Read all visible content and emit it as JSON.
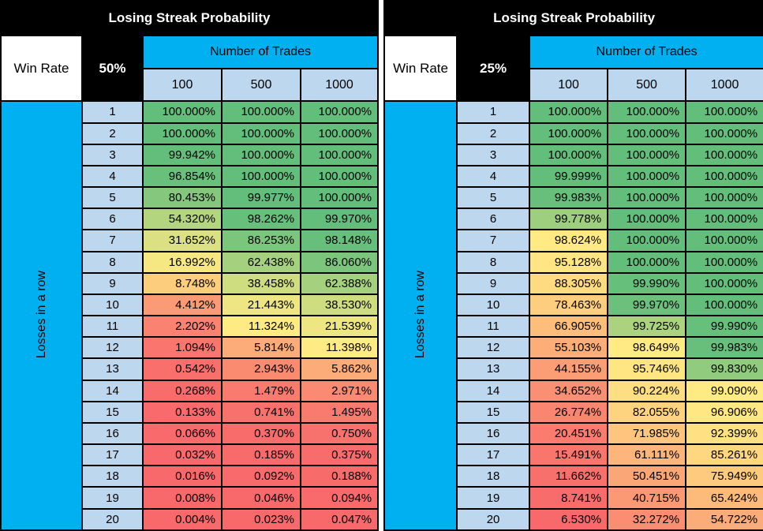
{
  "colors": {
    "header_blue": "#00B0F0",
    "light_blue": "#BDD7EE",
    "black": "#000000",
    "white": "#FFFFFF",
    "scale_min_red": "#F8696B",
    "scale_mid_yellow": "#FFEB84",
    "scale_max_green": "#63BE7B"
  },
  "chart_data": [
    {
      "type": "heatmap",
      "title": "Losing Streak Probability",
      "win_rate_label": "Win Rate",
      "win_rate": "50%",
      "xlabel": "Number of Trades",
      "ylabel": "Losses in a row",
      "columns": [
        "100",
        "500",
        "1000"
      ],
      "rows": [
        1,
        2,
        3,
        4,
        5,
        6,
        7,
        8,
        9,
        10,
        11,
        12,
        13,
        14,
        15,
        16,
        17,
        18,
        19,
        20
      ],
      "value_suffix": "%",
      "values": [
        [
          100.0,
          100.0,
          100.0
        ],
        [
          100.0,
          100.0,
          100.0
        ],
        [
          99.942,
          100.0,
          100.0
        ],
        [
          96.854,
          100.0,
          100.0
        ],
        [
          80.453,
          99.977,
          100.0
        ],
        [
          54.32,
          98.262,
          99.97
        ],
        [
          31.652,
          86.253,
          98.148
        ],
        [
          16.992,
          62.438,
          86.06
        ],
        [
          8.748,
          38.458,
          62.388
        ],
        [
          4.412,
          21.443,
          38.53
        ],
        [
          2.202,
          11.324,
          21.539
        ],
        [
          1.094,
          5.814,
          11.398
        ],
        [
          0.542,
          2.943,
          5.862
        ],
        [
          0.268,
          1.479,
          2.971
        ],
        [
          0.133,
          0.741,
          1.495
        ],
        [
          0.066,
          0.37,
          0.75
        ],
        [
          0.032,
          0.185,
          0.375
        ],
        [
          0.016,
          0.092,
          0.188
        ],
        [
          0.008,
          0.046,
          0.094
        ],
        [
          0.004,
          0.023,
          0.047
        ]
      ],
      "color_scale": {
        "type": "3-color",
        "min": "#F8696B",
        "mid": "#FFEB84",
        "max": "#63BE7B",
        "midpoint": "50th-percentile"
      }
    },
    {
      "type": "heatmap",
      "title": "Losing Streak Probability",
      "win_rate_label": "Win Rate",
      "win_rate": "25%",
      "xlabel": "Number of Trades",
      "ylabel": "Losses in a row",
      "columns": [
        "100",
        "500",
        "1000"
      ],
      "rows": [
        1,
        2,
        3,
        4,
        5,
        6,
        7,
        8,
        9,
        10,
        11,
        12,
        13,
        14,
        15,
        16,
        17,
        18,
        19,
        20
      ],
      "value_suffix": "%",
      "values": [
        [
          100.0,
          100.0,
          100.0
        ],
        [
          100.0,
          100.0,
          100.0
        ],
        [
          100.0,
          100.0,
          100.0
        ],
        [
          99.999,
          100.0,
          100.0
        ],
        [
          99.983,
          100.0,
          100.0
        ],
        [
          99.778,
          100.0,
          100.0
        ],
        [
          98.624,
          100.0,
          100.0
        ],
        [
          95.128,
          100.0,
          100.0
        ],
        [
          88.305,
          99.99,
          100.0
        ],
        [
          78.463,
          99.97,
          100.0
        ],
        [
          66.905,
          99.725,
          99.99
        ],
        [
          55.103,
          98.649,
          99.983
        ],
        [
          44.155,
          95.746,
          99.83
        ],
        [
          34.652,
          90.224,
          99.09
        ],
        [
          26.774,
          82.055,
          96.906
        ],
        [
          20.451,
          71.985,
          92.399
        ],
        [
          15.491,
          61.111,
          85.261
        ],
        [
          11.662,
          50.451,
          75.949
        ],
        [
          8.741,
          40.715,
          65.424
        ],
        [
          6.53,
          32.272,
          54.722
        ]
      ],
      "color_scale": {
        "type": "3-color",
        "min": "#F8696B",
        "mid": "#FFEB84",
        "max": "#63BE7B",
        "midpoint": "50th-percentile"
      }
    }
  ]
}
